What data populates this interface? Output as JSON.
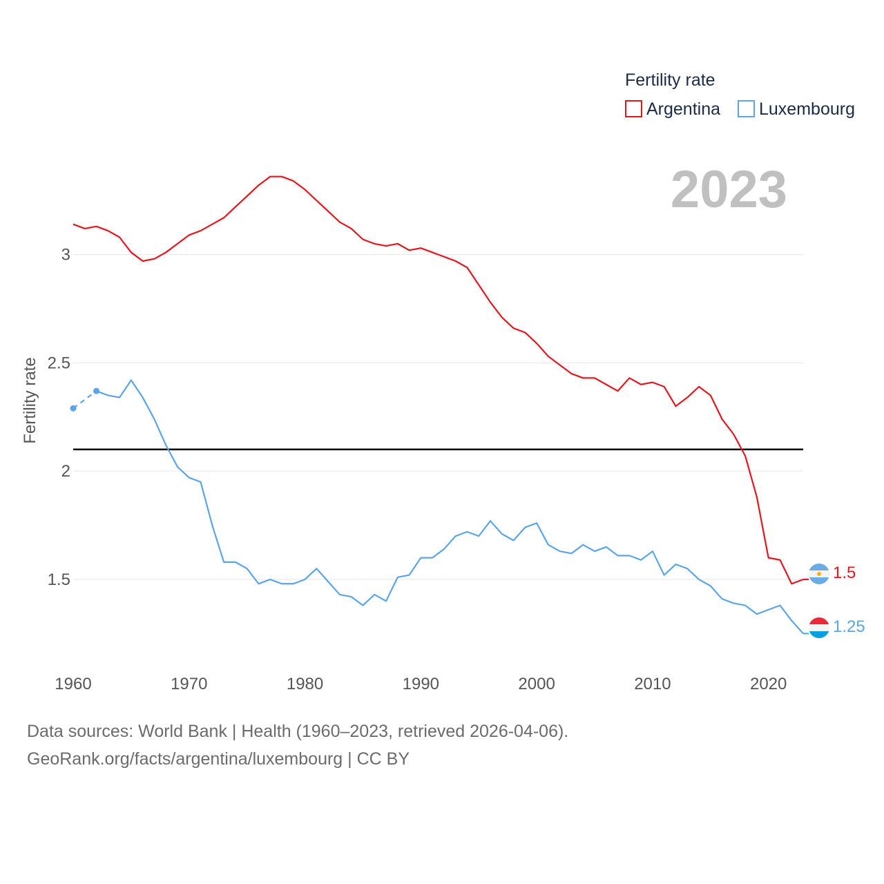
{
  "chart_data": {
    "type": "line",
    "ylabel": "Fertility rate",
    "year_label": "2023",
    "legend": {
      "title": "Fertility rate",
      "items": [
        {
          "name": "Argentina",
          "color": "#e8141b"
        },
        {
          "name": "Luxembourg",
          "color": "#5aa4ea"
        }
      ]
    },
    "xlim": [
      1960,
      2023
    ],
    "ylim": [
      1.13,
      3.41
    ],
    "x_ticks": [
      "1960",
      "1970",
      "1980",
      "1990",
      "2000",
      "2010",
      "2020"
    ],
    "y_ticks": [
      "1.5",
      "2",
      "2.5",
      "3"
    ],
    "reference_line": {
      "value": 2.1,
      "color": "#000000"
    },
    "series": [
      {
        "name": "Argentina",
        "color": "#e8141b",
        "end_label": "1.5",
        "x": [
          1960,
          1961,
          1962,
          1963,
          1964,
          1965,
          1966,
          1967,
          1968,
          1969,
          1970,
          1971,
          1972,
          1973,
          1974,
          1975,
          1976,
          1977,
          1978,
          1979,
          1980,
          1981,
          1982,
          1983,
          1984,
          1985,
          1986,
          1987,
          1988,
          1989,
          1990,
          1991,
          1992,
          1993,
          1994,
          1995,
          1996,
          1997,
          1998,
          1999,
          2000,
          2001,
          2002,
          2003,
          2004,
          2005,
          2006,
          2007,
          2008,
          2009,
          2010,
          2011,
          2012,
          2013,
          2014,
          2015,
          2016,
          2017,
          2018,
          2019,
          2020,
          2021,
          2022,
          2023
        ],
        "y": [
          3.14,
          3.12,
          3.13,
          3.11,
          3.08,
          3.01,
          2.97,
          2.98,
          3.01,
          3.05,
          3.09,
          3.11,
          3.14,
          3.17,
          3.22,
          3.27,
          3.32,
          3.36,
          3.36,
          3.34,
          3.3,
          3.25,
          3.2,
          3.15,
          3.12,
          3.07,
          3.05,
          3.04,
          3.05,
          3.02,
          3.03,
          3.01,
          2.99,
          2.97,
          2.94,
          2.86,
          2.78,
          2.71,
          2.66,
          2.64,
          2.59,
          2.53,
          2.49,
          2.45,
          2.43,
          2.43,
          2.4,
          2.37,
          2.43,
          2.4,
          2.41,
          2.39,
          2.3,
          2.34,
          2.39,
          2.35,
          2.24,
          2.17,
          2.07,
          1.88,
          1.6,
          1.59,
          1.48,
          1.5
        ]
      },
      {
        "name": "Luxembourg",
        "color": "#5aa4ea",
        "end_label": "1.25",
        "estimated_x": [
          1960,
          1962
        ],
        "estimated_y": [
          2.29,
          2.37
        ],
        "x": [
          1962,
          1963,
          1964,
          1965,
          1966,
          1967,
          1968,
          1969,
          1970,
          1971,
          1972,
          1973,
          1974,
          1975,
          1976,
          1977,
          1978,
          1979,
          1980,
          1981,
          1982,
          1983,
          1984,
          1985,
          1986,
          1987,
          1988,
          1989,
          1990,
          1991,
          1992,
          1993,
          1994,
          1995,
          1996,
          1997,
          1998,
          1999,
          2000,
          2001,
          2002,
          2003,
          2004,
          2005,
          2006,
          2007,
          2008,
          2009,
          2010,
          2011,
          2012,
          2013,
          2014,
          2015,
          2016,
          2017,
          2018,
          2019,
          2020,
          2021,
          2022,
          2023
        ],
        "y": [
          2.37,
          2.35,
          2.34,
          2.42,
          2.34,
          2.24,
          2.12,
          2.02,
          1.97,
          1.95,
          1.75,
          1.58,
          1.58,
          1.55,
          1.48,
          1.5,
          1.48,
          1.48,
          1.5,
          1.55,
          1.49,
          1.43,
          1.42,
          1.38,
          1.43,
          1.4,
          1.51,
          1.52,
          1.6,
          1.6,
          1.64,
          1.7,
          1.72,
          1.7,
          1.77,
          1.71,
          1.68,
          1.74,
          1.76,
          1.66,
          1.63,
          1.62,
          1.66,
          1.63,
          1.65,
          1.61,
          1.61,
          1.59,
          1.63,
          1.52,
          1.57,
          1.55,
          1.5,
          1.47,
          1.41,
          1.39,
          1.38,
          1.34,
          1.36,
          1.38,
          1.31,
          1.25
        ]
      }
    ]
  },
  "source": {
    "line1": "Data sources: World Bank | Health (1960–2023, retrieved 2026-04-06).",
    "line2": "GeoRank.org/facts/argentina/luxembourg | CC BY"
  }
}
